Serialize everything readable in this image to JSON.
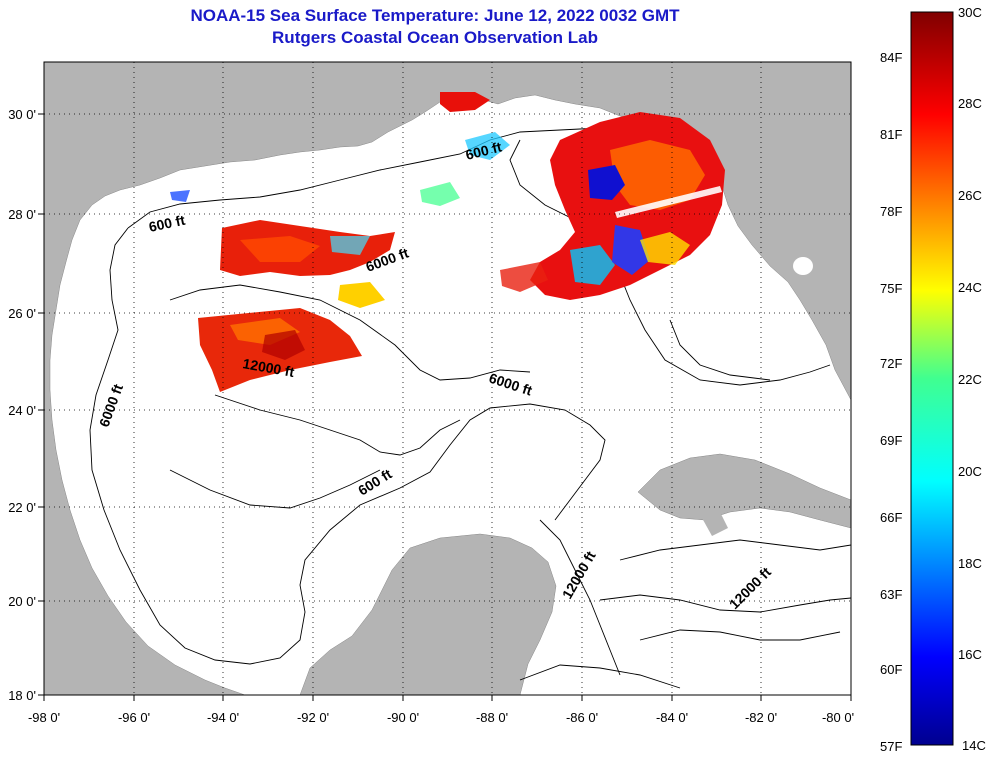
{
  "title": "NOAA-15 Sea Surface Temperature:  June 12, 2022 0032 GMT",
  "subtitle": "Rutgers Coastal Ocean Observation Lab",
  "map": {
    "lon_ticks": [
      "-98 0'",
      "-96 0'",
      "-94 0'",
      "-92 0'",
      "-90 0'",
      "-88 0'",
      "-86 0'",
      "-84 0'",
      "-82 0'",
      "-80 0'"
    ],
    "lat_ticks": [
      "30 0'",
      "28 0'",
      "26 0'",
      "24 0'",
      "22 0'",
      "20 0'",
      "18 0'"
    ],
    "contour_labels": [
      "600 ft",
      "600 ft",
      "6000 ft",
      "6000 ft",
      "6000 ft",
      "12000 ft",
      "600 ft",
      "12000 ft",
      "12000 ft"
    ],
    "colors": {
      "land": "#b4b4b4",
      "ocean": "#ffffff",
      "title": "#1a1ac8"
    }
  },
  "colorbar": {
    "celsius": [
      "30C",
      "28C",
      "26C",
      "24C",
      "22C",
      "20C",
      "18C",
      "16C",
      "14C"
    ],
    "fahrenheit": [
      "84F",
      "81F",
      "78F",
      "75F",
      "72F",
      "69F",
      "66F",
      "63F",
      "60F",
      "57F"
    ]
  }
}
